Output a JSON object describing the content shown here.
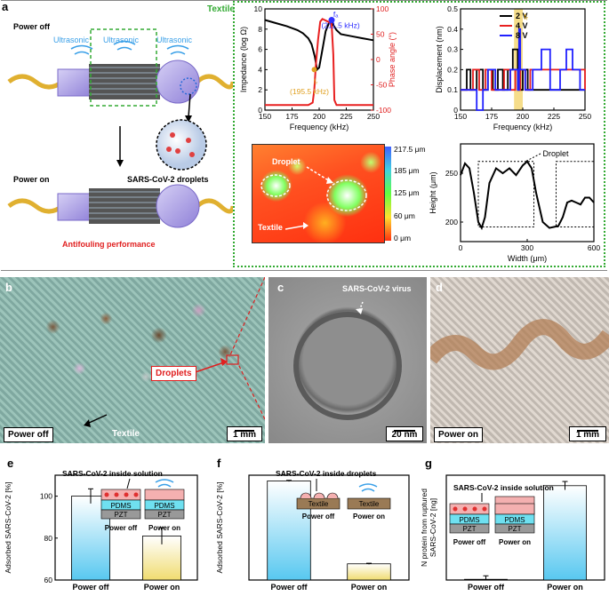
{
  "panels": {
    "a": "a",
    "b": "b",
    "c": "c",
    "d": "d",
    "e": "e",
    "f": "f",
    "g": "g"
  },
  "panel_a": {
    "power_off": "Power off",
    "power_on": "Power on",
    "ultrasonic": [
      "Ultrasonic",
      "Ultrasonic",
      "Ultrasonic"
    ],
    "textile": "Textile",
    "droplets_label": "SARS-CoV-2 droplets",
    "antifouling": "Antifouling performance"
  },
  "panel_b": {
    "label": "Power off",
    "droplets": "Droplets",
    "textile": "Textile",
    "scale": "1 mm"
  },
  "panel_c": {
    "virus": "SARS-CoV-2 virus",
    "scale": "20 nm"
  },
  "panel_d": {
    "label": "Power on",
    "scale": "1 mm"
  },
  "heatmap": {
    "colorbar_ticks": [
      "217.5 μm",
      "185 μm",
      "125 μm",
      "60 μm",
      "0 μm"
    ],
    "droplet": "Droplet",
    "textile": "Textile"
  },
  "colors": {
    "green_border": "#33aa33",
    "red_text": "#e02020",
    "blue": "#3030ff"
  },
  "chart_data": [
    {
      "type": "line",
      "title": "",
      "xlabel": "Frequency (kHz)",
      "ylabel": "Impedance (log Ω)",
      "y2label": "Phase angle (°)",
      "xlim": [
        150,
        250
      ],
      "ylim": [
        0,
        10
      ],
      "y2lim": [
        -100,
        100
      ],
      "xticks": [
        "150",
        "175",
        "200",
        "225",
        "250"
      ],
      "yticks": [
        "0",
        "2",
        "4",
        "6",
        "8",
        "10"
      ],
      "y2ticks": [
        "-100",
        "-50",
        "0",
        "50",
        "100"
      ],
      "annotations": {
        "fa": "fₐ",
        "fa_value": "(211.5 kHz)",
        "fr": "fᵣ",
        "fr_value": "(195.5 kHz)"
      },
      "series": [
        {
          "name": "Impedance",
          "x": [
            150,
            160,
            170,
            180,
            185,
            190,
            193,
            196,
            198,
            200,
            203,
            206,
            209,
            211.5,
            213,
            216,
            220,
            230,
            240,
            250
          ],
          "y": [
            8.9,
            8.6,
            8.3,
            7.9,
            7.6,
            7.1,
            6.5,
            5.3,
            4.0,
            4.2,
            6.0,
            7.8,
            8.6,
            8.9,
            8.4,
            7.9,
            7.5,
            7.3,
            7.1,
            6.9
          ]
        },
        {
          "name": "Phase angle",
          "x": [
            150,
            190,
            194,
            195.5,
            197,
            199,
            201,
            203,
            205,
            208,
            211.5,
            213,
            214,
            216,
            250
          ],
          "y": [
            -90,
            -90,
            -85,
            -60,
            -10,
            40,
            75,
            80,
            78,
            75,
            70,
            10,
            -80,
            -90,
            -90
          ]
        }
      ]
    },
    {
      "type": "line",
      "xlabel": "Frequency (kHz)",
      "ylabel": "Displacement (nm)",
      "xlim": [
        150,
        250
      ],
      "ylim": [
        0,
        0.5
      ],
      "xticks": [
        "150",
        "175",
        "200",
        "225",
        "250"
      ],
      "yticks": [
        "0",
        "0.1",
        "0.2",
        "0.3",
        "0.4",
        "0.5"
      ],
      "annotation": "fᵣ",
      "series": [
        {
          "name": "2 V",
          "x": [
            150,
            155,
            158,
            163,
            168,
            172,
            176,
            180,
            184,
            188,
            192,
            196,
            200,
            204,
            250
          ],
          "y": [
            0.1,
            0.2,
            0.1,
            0.2,
            0.1,
            0.2,
            0.1,
            0.2,
            0.1,
            0.2,
            0.3,
            0.1,
            0.2,
            0.1,
            0.1
          ]
        },
        {
          "name": "4 V",
          "x": [
            150,
            160,
            165,
            170,
            175,
            180,
            185,
            190,
            194,
            196,
            198,
            202,
            206,
            250
          ],
          "y": [
            0.1,
            0.2,
            0.1,
            0.2,
            0.1,
            0.1,
            0.2,
            0.1,
            0.2,
            0.1,
            0.2,
            0.1,
            0.2,
            0.1
          ]
        },
        {
          "name": "8 V",
          "x": [
            150,
            158,
            163,
            168,
            172,
            178,
            184,
            190,
            196,
            197,
            198,
            202,
            208,
            215,
            222,
            230,
            235,
            240,
            246,
            250
          ],
          "y": [
            0.1,
            0.1,
            0.0,
            0.1,
            0.2,
            0.1,
            0.1,
            0.2,
            0.1,
            0.4,
            0.2,
            0.1,
            0.2,
            0.3,
            0.1,
            0.2,
            0.3,
            0.2,
            0.1,
            0.1
          ]
        }
      ]
    },
    {
      "type": "line",
      "xlabel": "Width (μm)",
      "ylabel": "Height (μm)",
      "xlim": [
        0,
        600
      ],
      "ylim": [
        180,
        280
      ],
      "xticks": [
        "0",
        "300",
        "600"
      ],
      "yticks": [
        "200",
        "250"
      ],
      "annotation": "Droplet",
      "series": [
        {
          "name": "Height",
          "x": [
            0,
            20,
            40,
            60,
            80,
            95,
            110,
            130,
            160,
            190,
            220,
            250,
            280,
            300,
            320,
            340,
            370,
            400,
            420,
            440,
            460,
            480,
            500,
            520,
            540,
            560,
            580,
            600
          ],
          "y": [
            248,
            260,
            255,
            230,
            200,
            194,
            205,
            240,
            255,
            250,
            255,
            248,
            258,
            262,
            255,
            230,
            200,
            194,
            195,
            196,
            205,
            220,
            222,
            220,
            218,
            225,
            225,
            220
          ]
        }
      ]
    },
    {
      "type": "bar",
      "ylabel": "Adsorbed SARS-CoV-2 [%]",
      "categories": [
        "Power off",
        "Power on"
      ],
      "values": [
        100,
        81
      ],
      "errors": [
        3.5,
        4
      ],
      "ylim": [
        60,
        110
      ],
      "yticks": [
        "60",
        "80",
        "100"
      ],
      "inset_title": "SARS-CoV-2 inside solution",
      "inset_layers": [
        "PDMS",
        "PZT",
        "PDMS",
        "PZT"
      ],
      "inset_labels": [
        "Power off",
        "Power on"
      ]
    },
    {
      "type": "bar",
      "ylabel": "Adsorbed SARS-CoV-2 [%]",
      "categories": [
        "Power off",
        "Power on"
      ],
      "values": [
        104,
        17
      ],
      "errors": [
        0.6,
        0.6
      ],
      "ylim": [
        0,
        110
      ],
      "inset_title": "SARS-CoV-2 inside droplets",
      "inset_layers": [
        "Textile",
        "Textile"
      ],
      "inset_labels": [
        "Power off",
        "Power on"
      ]
    },
    {
      "type": "bar",
      "ylabel": "N protein from ruptured SARS-CoV-2 [ng]",
      "categories": [
        "Power off",
        "Power on"
      ],
      "values": [
        0.2,
        27
      ],
      "errors": [
        1,
        1.2
      ],
      "ylim": [
        0,
        30
      ],
      "inset_title": "SARS-CoV-2 inside solution",
      "inset_layers": [
        "PDMS",
        "PZT",
        "PDMS",
        "PZT"
      ],
      "inset_labels": [
        "Power off",
        "Power on"
      ]
    }
  ]
}
